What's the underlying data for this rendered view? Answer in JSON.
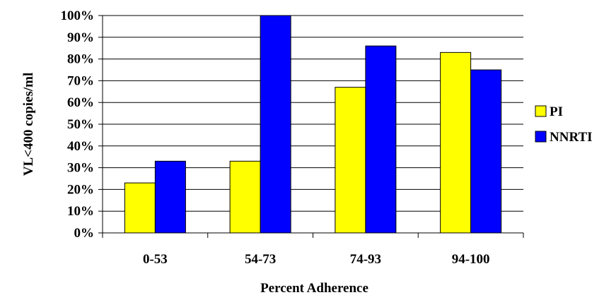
{
  "chart_data": {
    "type": "bar",
    "categories": [
      "0-53",
      "54-73",
      "74-93",
      "94-100"
    ],
    "series": [
      {
        "name": "PI",
        "values": [
          23,
          33,
          67,
          83
        ],
        "color": "#ffff00"
      },
      {
        "name": "NNRTI",
        "values": [
          33,
          100,
          86,
          75
        ],
        "color": "#0000ff"
      }
    ],
    "y_ticks": [
      "0%",
      "10%",
      "20%",
      "30%",
      "40%",
      "50%",
      "60%",
      "70%",
      "80%",
      "90%",
      "100%"
    ],
    "ylim": [
      0,
      100
    ],
    "ylabel": "VL<400 copies/ml",
    "xlabel": "Percent Adherence",
    "grid": true,
    "legend_position": "right"
  }
}
